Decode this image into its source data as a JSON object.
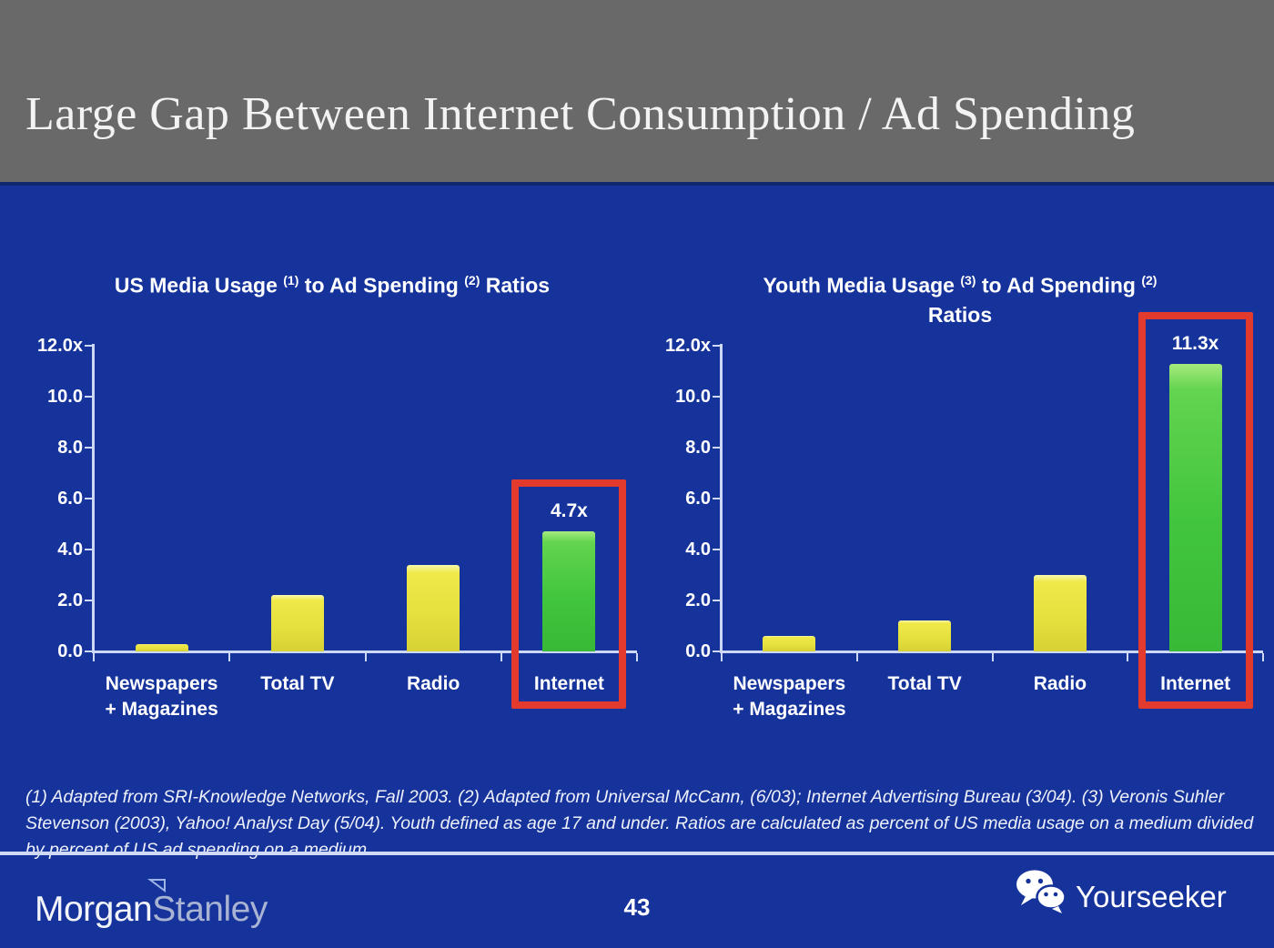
{
  "slide": {
    "title": "Large Gap Between Internet Consumption / Ad Spending",
    "page_number": "43"
  },
  "footnote": {
    "lines": [
      "(1) Adapted from SRI-Knowledge Networks, Fall 2003.  (2) Adapted from Universal McCann, (6/03); Internet Advertising Bureau (3/04). (3) Veronis Suhler",
      "Stevenson (2003), Yahoo! Analyst Day (5/04).  Youth defined as age 17 and under.  Ratios are calculated as percent of US media usage on a medium divided",
      "by percent of US ad spending on a medium."
    ]
  },
  "footer": {
    "brand_part1": "Morgan",
    "brand_part2": "Stanley",
    "watermark": "Yourseeker",
    "watermark_icon": "wechat-logo"
  },
  "colors": {
    "header_gray": "#696969",
    "background_blue": "#16339c",
    "bar_yellow": "#e6e13e",
    "bar_green": "#42c53e",
    "highlight_red": "#e23b2e",
    "axis_light": "#ccd8f6",
    "text_white": "#ffffff",
    "stanley_gray": "#a9b3d2"
  },
  "chart_data": [
    {
      "type": "bar",
      "title": "US Media Usage (1) to Ad Spending (2) Ratios",
      "title_parts": {
        "pre": "US Media Usage",
        "sup1": "(1)",
        "mid": "to Ad Spending",
        "sup2": "(2)",
        "post": "Ratios",
        "line2": ""
      },
      "categories": [
        "Newspapers + Magazines",
        "Total TV",
        "Radio",
        "Internet"
      ],
      "category_label_lines": [
        [
          "Newspapers",
          "+ Magazines"
        ],
        [
          "Total TV"
        ],
        [
          "Radio"
        ],
        [
          "Internet"
        ]
      ],
      "values": [
        0.3,
        2.2,
        3.4,
        4.7
      ],
      "bar_value_labels": [
        "",
        "",
        "",
        "4.7x"
      ],
      "bar_colors": [
        "yellow",
        "yellow",
        "yellow",
        "green"
      ],
      "highlighted_category": "Internet",
      "y_ticks": [
        "12.0x",
        "10.0",
        "8.0",
        "6.0",
        "4.0",
        "2.0",
        "0.0"
      ],
      "ylim": [
        0,
        12
      ],
      "xlabel": "",
      "ylabel": "",
      "grid": false,
      "legend": null
    },
    {
      "type": "bar",
      "title": "Youth Media Usage (3) to Ad Spending (2) Ratios",
      "title_parts": {
        "pre": "Youth Media Usage",
        "sup1": "(3)",
        "mid": "to Ad Spending",
        "sup2": "(2)",
        "post": "",
        "line2": "Ratios"
      },
      "categories": [
        "Newspapers + Magazines",
        "Total TV",
        "Radio",
        "Internet"
      ],
      "category_label_lines": [
        [
          "Newspapers",
          "+ Magazines"
        ],
        [
          "Total TV"
        ],
        [
          "Radio"
        ],
        [
          "Internet"
        ]
      ],
      "values": [
        0.6,
        1.2,
        3.0,
        11.3
      ],
      "bar_value_labels": [
        "",
        "",
        "",
        "11.3x"
      ],
      "bar_colors": [
        "yellow",
        "yellow",
        "yellow",
        "green"
      ],
      "highlighted_category": "Internet",
      "y_ticks": [
        "12.0x",
        "10.0",
        "8.0",
        "6.0",
        "4.0",
        "2.0",
        "0.0"
      ],
      "ylim": [
        0,
        12
      ],
      "xlabel": "",
      "ylabel": "",
      "grid": false,
      "legend": null
    }
  ]
}
